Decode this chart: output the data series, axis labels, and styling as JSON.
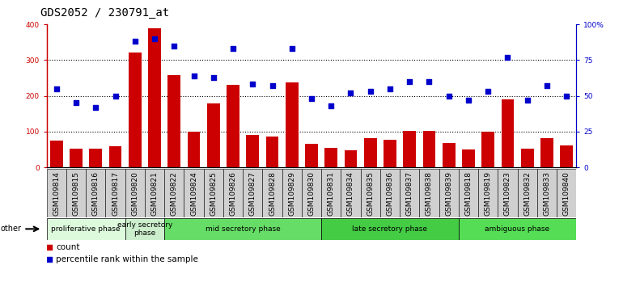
{
  "title": "GDS2052 / 230791_at",
  "samples": [
    "GSM109814",
    "GSM109815",
    "GSM109816",
    "GSM109817",
    "GSM109820",
    "GSM109821",
    "GSM109822",
    "GSM109824",
    "GSM109825",
    "GSM109826",
    "GSM109827",
    "GSM109828",
    "GSM109829",
    "GSM109830",
    "GSM109831",
    "GSM109834",
    "GSM109835",
    "GSM109836",
    "GSM109837",
    "GSM109838",
    "GSM109839",
    "GSM109818",
    "GSM109819",
    "GSM109823",
    "GSM109832",
    "GSM109833",
    "GSM109840"
  ],
  "counts": [
    75,
    52,
    52,
    60,
    320,
    390,
    258,
    100,
    178,
    230,
    90,
    85,
    237,
    65,
    55,
    47,
    82,
    78,
    103,
    103,
    67,
    50,
    100,
    190,
    52,
    82,
    62
  ],
  "percentiles": [
    55,
    45,
    42,
    50,
    88,
    90,
    85,
    64,
    63,
    83,
    58,
    57,
    83,
    48,
    43,
    52,
    53,
    55,
    60,
    60,
    50,
    47,
    53,
    77,
    47,
    57,
    50
  ],
  "bar_color": "#cc0000",
  "dot_color": "#0000cc",
  "ylim_left": [
    0,
    400
  ],
  "ylim_right": [
    0,
    100
  ],
  "yticks_left": [
    0,
    100,
    200,
    300,
    400
  ],
  "ytick_labels_left": [
    "0",
    "100",
    "200",
    "300",
    "400"
  ],
  "yticks_right": [
    0,
    25,
    50,
    75,
    100
  ],
  "ytick_labels_right": [
    "0",
    "25",
    "50",
    "75",
    "100%"
  ],
  "grid_yticks": [
    100,
    200,
    300
  ],
  "grid_color": "black",
  "phases": [
    {
      "label": "proliferative phase",
      "start": 0,
      "end": 4,
      "color": "#ddfadd"
    },
    {
      "label": "early secretory\nphase",
      "start": 4,
      "end": 6,
      "color": "#cceecc"
    },
    {
      "label": "mid secretory phase",
      "start": 6,
      "end": 14,
      "color": "#66dd66"
    },
    {
      "label": "late secretory phase",
      "start": 14,
      "end": 21,
      "color": "#44cc44"
    },
    {
      "label": "ambiguous phase",
      "start": 21,
      "end": 27,
      "color": "#55dd55"
    }
  ],
  "other_label": "other",
  "legend_count_label": "count",
  "legend_pct_label": "percentile rank within the sample",
  "plot_bg": "#ffffff",
  "xticklabel_bg": "#d0d0d0",
  "title_fontsize": 10,
  "tick_fontsize": 6.5,
  "phase_fontsize": 6.5
}
